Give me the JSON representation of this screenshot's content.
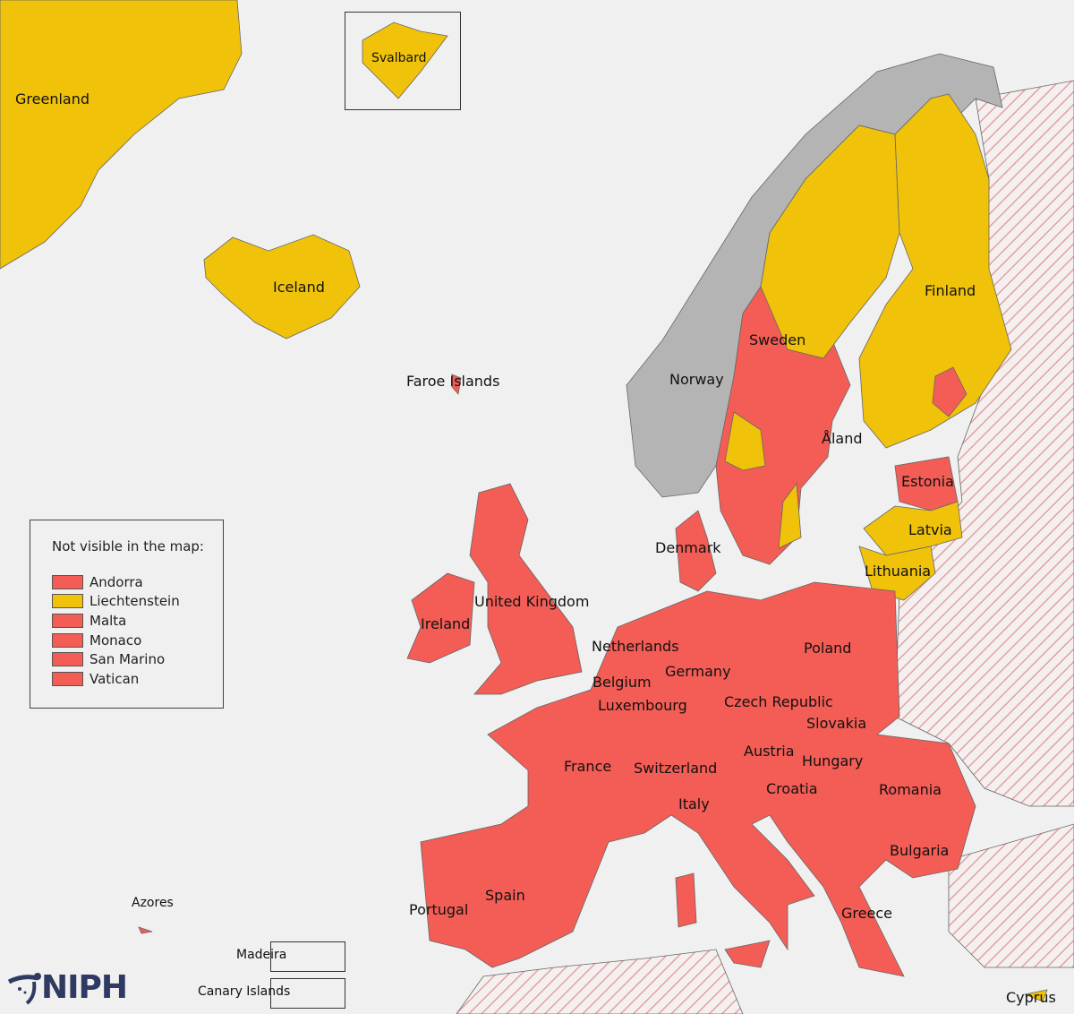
{
  "colors": {
    "background": "#f0f0f0",
    "red": "#f35d55",
    "yellow": "#f0c20a",
    "gray": "#b4b4b4",
    "hatch": "#e8a8a8",
    "border": "#555555"
  },
  "labels": {
    "greenland": "Greenland",
    "svalbard": "Svalbard",
    "iceland": "Iceland",
    "faroe": "Faroe Islands",
    "norway": "Norway",
    "sweden": "Sweden",
    "finland": "Finland",
    "aland": "Åland",
    "estonia": "Estonia",
    "latvia": "Latvia",
    "lithuania": "Lithuania",
    "denmark": "Denmark",
    "uk": "United Kingdom",
    "ireland": "Ireland",
    "netherlands": "Netherlands",
    "belgium": "Belgium",
    "luxembourg": "Luxembourg",
    "germany": "Germany",
    "poland": "Poland",
    "czech": "Czech Republic",
    "slovakia": "Slovakia",
    "austria": "Austria",
    "hungary": "Hungary",
    "france": "France",
    "switzerland": "Switzerland",
    "italy": "Italy",
    "croatia": "Croatia",
    "romania": "Romania",
    "bulgaria": "Bulgaria",
    "greece": "Greece",
    "spain": "Spain",
    "portugal": "Portugal",
    "azores": "Azores",
    "madeira": "Madeira",
    "canary": "Canary Islands",
    "cyprus": "Cyprus"
  },
  "legend": {
    "title": "Not visible in the map:",
    "items": [
      {
        "label": "Andorra",
        "color": "red"
      },
      {
        "label": "Liechtenstein",
        "color": "yellow"
      },
      {
        "label": "Malta",
        "color": "red"
      },
      {
        "label": "Monaco",
        "color": "red"
      },
      {
        "label": "San Marino",
        "color": "red"
      },
      {
        "label": "Vatican",
        "color": "red"
      }
    ]
  },
  "logo": {
    "text": "NIPH"
  }
}
